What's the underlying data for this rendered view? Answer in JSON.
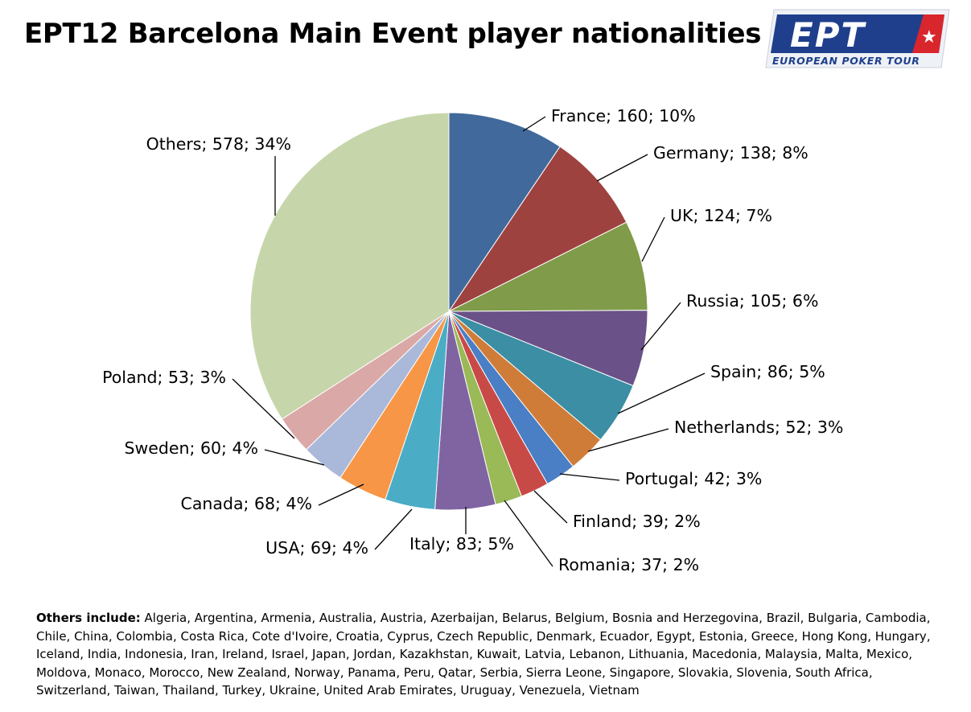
{
  "title": "EPT12 Barcelona Main Event player nationalities",
  "logo": {
    "text": "EPT",
    "subtitle": "EUROPEAN POKER TOUR",
    "colors": {
      "primary": "#1f3f8c",
      "accent": "#d9262c",
      "light": "#ffffff"
    }
  },
  "others_note": {
    "label": "Others include:",
    "text": "Algeria, Argentina, Armenia, Australia, Austria, Azerbaijan, Belarus, Belgium, Bosnia and Herzegovina, Brazil, Bulgaria, Cambodia, Chile, China, Colombia, Costa Rica, Cote d'Ivoire, Croatia, Cyprus, Czech Republic, Denmark, Ecuador, Egypt, Estonia, Greece, Hong Kong, Hungary, Iceland, India, Indonesia, Iran, Ireland, Israel, Japan, Jordan, Kazakhstan, Kuwait, Latvia, Lebanon, Lithuania, Macedonia, Malaysia, Malta, Mexico, Moldova, Monaco, Morocco, New Zealand, Norway, Panama, Peru, Qatar, Serbia, Sierra Leone, Singapore, Slovakia, Slovenia, South Africa, Switzerland, Taiwan, Thailand, Turkey, Ukraine, United Arab Emirates, Uruguay, Venezuela, Vietnam"
  },
  "chart_data": {
    "type": "pie",
    "title": "EPT12 Barcelona Main Event player nationalities",
    "start_angle": "12 o'clock, clockwise",
    "slices": [
      {
        "name": "France",
        "value": 160,
        "label": "France; 160; 10%",
        "color": "#41699b"
      },
      {
        "name": "Germany",
        "value": 138,
        "label": "Germany; 138; 8%",
        "color": "#9e4240"
      },
      {
        "name": "UK",
        "value": 124,
        "label": "UK; 124; 7%",
        "color": "#809b4a"
      },
      {
        "name": "Russia",
        "value": 105,
        "label": "Russia; 105; 6%",
        "color": "#6a5188"
      },
      {
        "name": "Spain",
        "value": 86,
        "label": "Spain; 86; 5%",
        "color": "#3b8ea3"
      },
      {
        "name": "Netherlands",
        "value": 52,
        "label": "Netherlands; 52; 3%",
        "color": "#d07c39"
      },
      {
        "name": "Portugal",
        "value": 42,
        "label": "Portugal; 42; 3%",
        "color": "#4a7fc5"
      },
      {
        "name": "Finland",
        "value": 39,
        "label": "Finland; 39; 2%",
        "color": "#c84a47"
      },
      {
        "name": "Romania",
        "value": 37,
        "label": "Romania; 37; 2%",
        "color": "#9ab957"
      },
      {
        "name": "Italy",
        "value": 83,
        "label": "Italy; 83; 5%",
        "color": "#8064a2"
      },
      {
        "name": "USA",
        "value": 69,
        "label": "USA; 69; 4%",
        "color": "#4bacc6"
      },
      {
        "name": "Canada",
        "value": 68,
        "label": "Canada; 68; 4%",
        "color": "#f79646"
      },
      {
        "name": "Sweden",
        "value": 60,
        "label": "Sweden; 60; 4%",
        "color": "#aab9d9"
      },
      {
        "name": "Poland",
        "value": 53,
        "label": "Poland; 53; 3%",
        "color": "#dba8a8"
      },
      {
        "name": "Others",
        "value": 578,
        "label": "Others; 578; 34%",
        "color": "#c6d6aa"
      }
    ]
  }
}
